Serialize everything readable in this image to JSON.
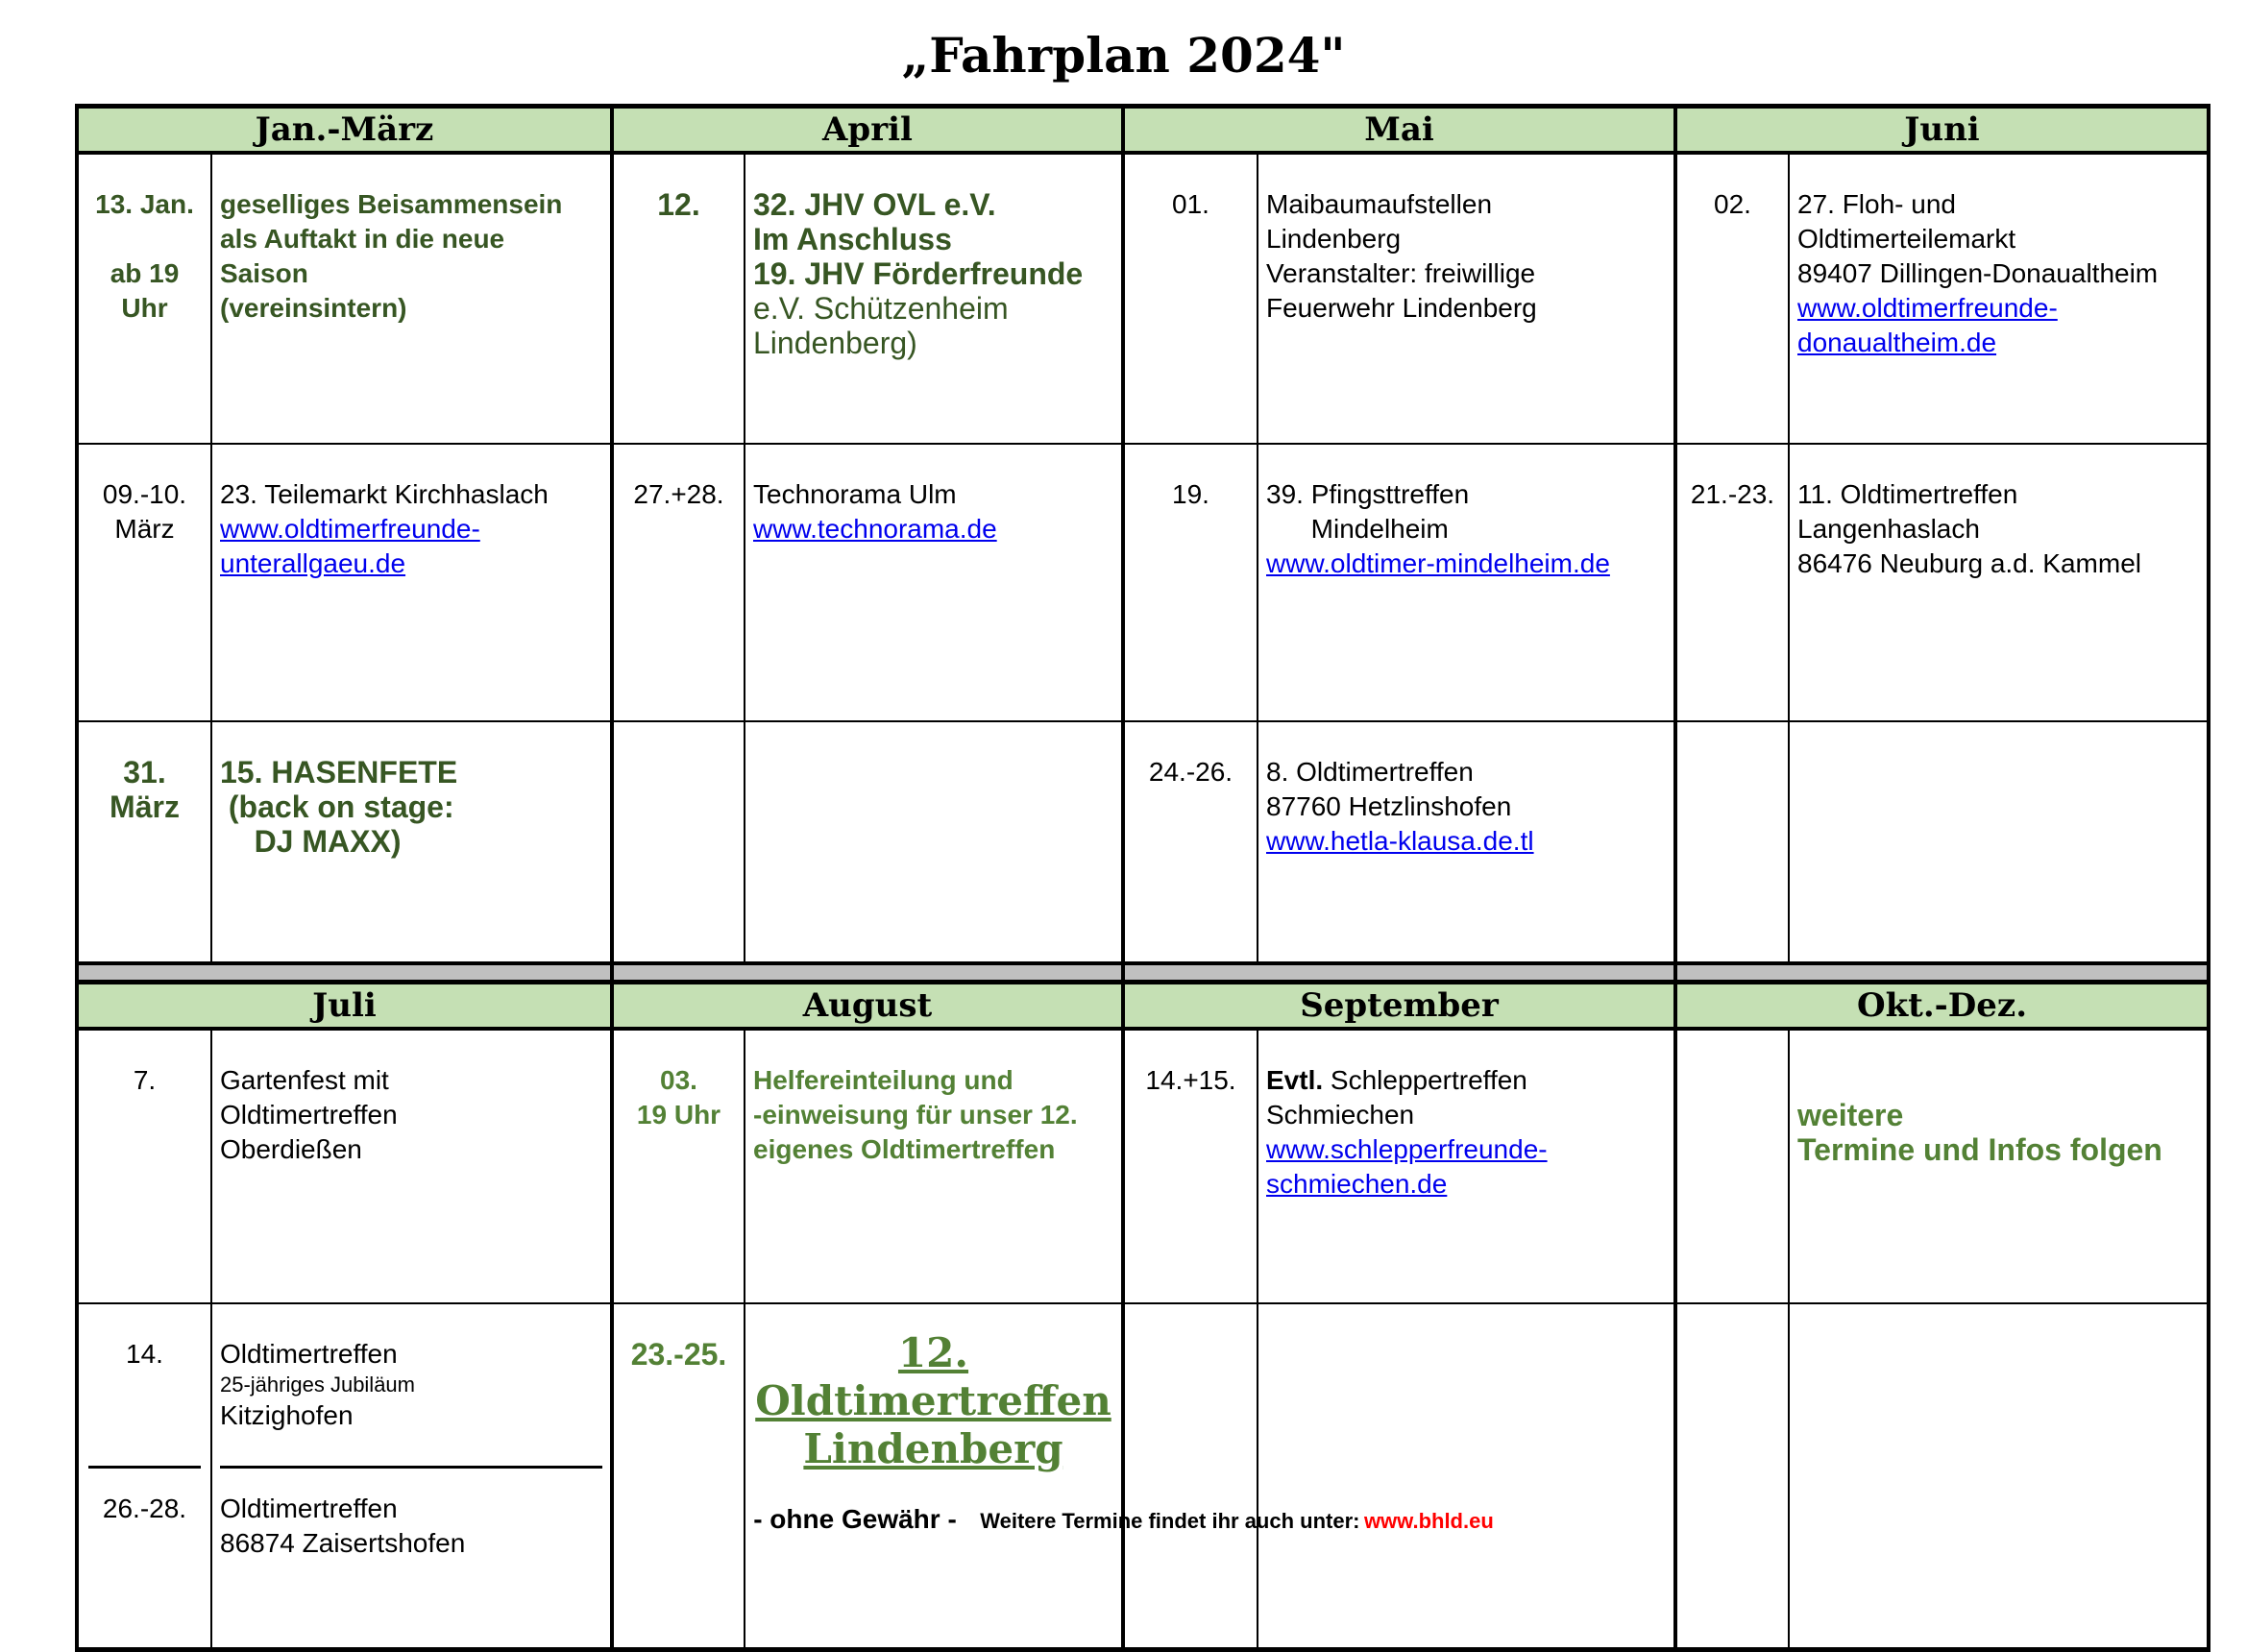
{
  "title": "„Fahrplan 2024\"",
  "colors": {
    "header_bg": "#c5e0b4",
    "dark_green": "#375623",
    "green": "#538135",
    "link": "#0000ee",
    "footer_link": "#ff0000",
    "separator": "#c0c0c0"
  },
  "sections": [
    {
      "months": [
        {
          "label": "Jan.-März",
          "rows": [
            {
              "date": [
                "13. Jan.",
                "",
                "ab 19",
                "Uhr"
              ],
              "color": "dark_green",
              "bold": true,
              "lines": [
                {
                  "t": "geselliges Beisammensein"
                },
                {
                  "t": "als Auftakt in die neue"
                },
                {
                  "t": "Saison"
                },
                {
                  "t": "(vereinsintern)"
                }
              ]
            },
            {
              "date": [
                "09.-10.",
                "März"
              ],
              "lines": [
                {
                  "t": "23. Teilemarkt Kirchhaslach"
                },
                {
                  "t": "www.oldtimerfreunde-",
                  "link": true
                },
                {
                  "t": "unterallgaeu.de",
                  "link": true
                }
              ]
            },
            {
              "date": [
                "31.",
                "März"
              ],
              "color": "dark_green",
              "bold": true,
              "big": true,
              "lines": [
                {
                  "t": "15. HASENFETE"
                },
                {
                  "t": " (back on stage:"
                },
                {
                  "t": "    DJ MAXX)"
                }
              ]
            }
          ]
        },
        {
          "label": "April",
          "rows": [
            {
              "date": [
                "12."
              ],
              "color": "dark_green",
              "bold": true,
              "big": true,
              "lines": [
                {
                  "t": "32. JHV OVL e.V.",
                  "b": true
                },
                {
                  "t": "Im Anschluss",
                  "b": true
                },
                {
                  "t": "19. JHV Förderfreunde",
                  "b": true
                },
                {
                  "t": "e.V. Schützenheim",
                  "nb": true
                },
                {
                  "t": "Lindenberg)",
                  "nb": true
                }
              ]
            },
            {
              "date": [
                "27.+28."
              ],
              "lines": [
                {
                  "t": "Technorama Ulm"
                },
                {
                  "t": "www.technorama.de",
                  "link": true
                }
              ]
            },
            {
              "date": [
                ""
              ],
              "lines": []
            }
          ]
        },
        {
          "label": "Mai",
          "rows": [
            {
              "date": [
                "01."
              ],
              "lines": [
                {
                  "t": "Maibaumaufstellen"
                },
                {
                  "t": "Lindenberg"
                },
                {
                  "t": "Veranstalter: freiwillige"
                },
                {
                  "t": "Feuerwehr Lindenberg"
                }
              ]
            },
            {
              "date": [
                "19."
              ],
              "lines": [
                {
                  "t": "39. Pfingsttreffen"
                },
                {
                  "t": "      Mindelheim"
                },
                {
                  "t": "www.oldtimer-mindelheim.de",
                  "link": true
                }
              ]
            },
            {
              "date": [
                "24.-26."
              ],
              "lines": [
                {
                  "t": "8. Oldtimertreffen"
                },
                {
                  "t": "87760 Hetzlinshofen"
                },
                {
                  "t": "www.hetla-klausa.de.tl",
                  "link": true
                }
              ]
            }
          ]
        },
        {
          "label": "Juni",
          "rows": [
            {
              "date": [
                "02."
              ],
              "lines": [
                {
                  "t": "27. Floh- und"
                },
                {
                  "t": "Oldtimerteilemarkt"
                },
                {
                  "t": "89407 Dillingen-Donaualtheim"
                },
                {
                  "t": "www.oldtimerfreunde-",
                  "link": true
                },
                {
                  "t": "donaualtheim.de",
                  "link": true
                }
              ]
            },
            {
              "date": [
                "21.-23."
              ],
              "lines": [
                {
                  "t": "11. Oldtimertreffen"
                },
                {
                  "t": "Langenhaslach"
                },
                {
                  "t": "86476 Neuburg a.d. Kammel"
                }
              ]
            },
            {
              "date": [
                ""
              ],
              "lines": []
            }
          ]
        }
      ]
    },
    {
      "months": [
        {
          "label": "Juli",
          "rows": [
            {
              "date": [
                "7."
              ],
              "lines": [
                {
                  "t": "Gartenfest mit"
                },
                {
                  "t": "Oldtimertreffen"
                },
                {
                  "t": "Oberdießen"
                }
              ]
            },
            {
              "split": [
                {
                  "date": [
                    "14."
                  ],
                  "lines": [
                    {
                      "t": "Oldtimertreffen"
                    },
                    {
                      "t": "25-jähriges Jubiläum",
                      "small": true
                    },
                    {
                      "t": "Kitzighofen"
                    }
                  ]
                },
                {
                  "date": [
                    "26.-28."
                  ],
                  "lines": [
                    {
                      "t": "Oldtimertreffen"
                    },
                    {
                      "t": "86874 Zaisertshofen"
                    }
                  ]
                }
              ]
            }
          ]
        },
        {
          "label": "August",
          "rows": [
            {
              "date": [
                "03.",
                "19 Uhr"
              ],
              "color": "green",
              "bold": true,
              "lines": [
                {
                  "t": "Helfereinteilung und"
                },
                {
                  "t": "-einweisung für unser 12."
                },
                {
                  "t": "eigenes Oldtimertreffen"
                }
              ]
            },
            {
              "date": [
                "23.-25."
              ],
              "color": "green",
              "bold": true,
              "big": true,
              "feature": [
                "12.",
                "Oldtimertreffen",
                "Lindenberg"
              ]
            }
          ]
        },
        {
          "label": "September",
          "rows": [
            {
              "date": [
                "14.+15."
              ],
              "lines": [
                {
                  "t": "Evtl.",
                  "b": true,
                  "inline_next": true
                },
                {
                  "t": " Schleppertreffen",
                  "inline": true
                },
                {
                  "t": "Schmiechen"
                },
                {
                  "t": "www.schlepperfreunde-",
                  "link": true
                },
                {
                  "t": "schmiechen.de",
                  "link": true
                }
              ]
            },
            {
              "date": [
                ""
              ],
              "lines": []
            }
          ]
        },
        {
          "label": "Okt.-Dez.",
          "rows": [
            {
              "date": [
                ""
              ],
              "color": "green",
              "bold": true,
              "big": true,
              "lines": [
                {
                  "t": ""
                },
                {
                  "t": "weitere"
                },
                {
                  "t": "Termine und Infos folgen"
                }
              ]
            },
            {
              "date": [
                ""
              ],
              "lines": []
            }
          ]
        }
      ]
    }
  ],
  "footer": {
    "disclaimer": "- ohne Gewähr -",
    "more_text": "Weitere Termine findet ihr auch unter:",
    "more_link": "www.bhld.eu"
  }
}
